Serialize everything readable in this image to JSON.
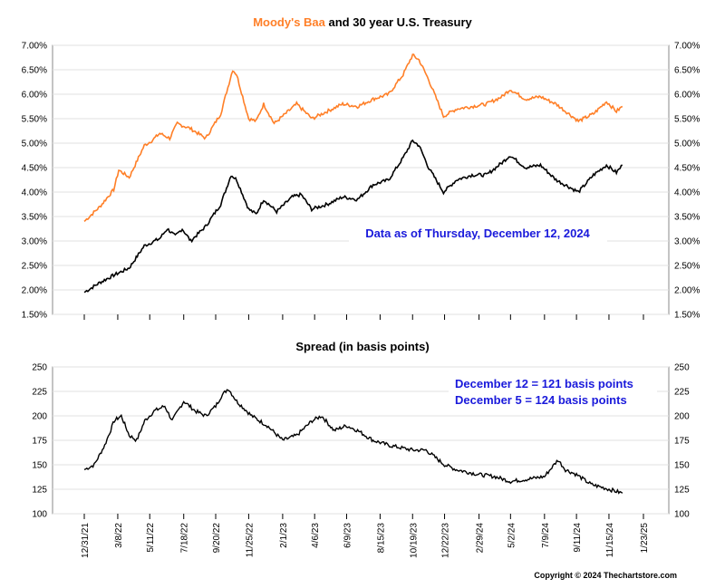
{
  "chart_data": [
    {
      "type": "line",
      "title_part1": "Moody's Baa",
      "title_part2": " and 30 year U.S. Treasury",
      "annotation": "Data as of Thursday, December 12, 2024",
      "ylim": [
        1.5,
        7.0
      ],
      "yticks": [
        "7.00%",
        "6.50%",
        "6.00%",
        "5.50%",
        "5.00%",
        "4.50%",
        "4.00%",
        "3.50%",
        "3.00%",
        "2.50%",
        "2.00%",
        "1.50%"
      ],
      "grid": true,
      "colors": {
        "baa": "#ff7f27",
        "treasury": "#000000"
      },
      "series": [
        {
          "key": "baa",
          "points": [
            [
              "2021-12-31",
              3.4
            ],
            [
              "2022-01-31",
              3.7
            ],
            [
              "2022-02-28",
              4.05
            ],
            [
              "2022-03-10",
              4.45
            ],
            [
              "2022-03-31",
              4.3
            ],
            [
              "2022-04-30",
              4.95
            ],
            [
              "2022-05-15",
              5.05
            ],
            [
              "2022-05-31",
              5.2
            ],
            [
              "2022-06-20",
              5.1
            ],
            [
              "2022-07-05",
              5.4
            ],
            [
              "2022-07-31",
              5.3
            ],
            [
              "2022-08-31",
              5.1
            ],
            [
              "2022-09-30",
              5.6
            ],
            [
              "2022-10-24",
              6.5
            ],
            [
              "2022-11-01",
              6.4
            ],
            [
              "2022-11-25",
              5.5
            ],
            [
              "2022-12-10",
              5.45
            ],
            [
              "2022-12-25",
              5.8
            ],
            [
              "2023-01-15",
              5.4
            ],
            [
              "2023-02-01",
              5.55
            ],
            [
              "2023-03-01",
              5.8
            ],
            [
              "2023-04-01",
              5.5
            ],
            [
              "2023-05-01",
              5.65
            ],
            [
              "2023-06-01",
              5.8
            ],
            [
              "2023-07-01",
              5.75
            ],
            [
              "2023-08-01",
              5.9
            ],
            [
              "2023-09-01",
              6.0
            ],
            [
              "2023-09-30",
              6.4
            ],
            [
              "2023-10-19",
              6.8
            ],
            [
              "2023-11-01",
              6.7
            ],
            [
              "2023-11-20",
              6.3
            ],
            [
              "2023-12-20",
              5.55
            ],
            [
              "2024-01-15",
              5.7
            ],
            [
              "2024-02-15",
              5.75
            ],
            [
              "2024-03-15",
              5.8
            ],
            [
              "2024-04-15",
              5.95
            ],
            [
              "2024-05-01",
              6.1
            ],
            [
              "2024-06-01",
              5.9
            ],
            [
              "2024-07-01",
              5.95
            ],
            [
              "2024-08-01",
              5.8
            ],
            [
              "2024-09-15",
              5.45
            ],
            [
              "2024-10-15",
              5.6
            ],
            [
              "2024-11-10",
              5.85
            ],
            [
              "2024-11-30",
              5.65
            ],
            [
              "2024-12-12",
              5.75
            ]
          ]
        },
        {
          "key": "treasury",
          "points": [
            [
              "2021-12-31",
              1.95
            ],
            [
              "2022-01-31",
              2.15
            ],
            [
              "2022-02-28",
              2.3
            ],
            [
              "2022-03-31",
              2.45
            ],
            [
              "2022-04-30",
              2.9
            ],
            [
              "2022-05-31",
              3.05
            ],
            [
              "2022-06-15",
              3.25
            ],
            [
              "2022-07-01",
              3.1
            ],
            [
              "2022-07-15",
              3.25
            ],
            [
              "2022-08-01",
              3.0
            ],
            [
              "2022-08-31",
              3.3
            ],
            [
              "2022-09-30",
              3.75
            ],
            [
              "2022-10-21",
              4.35
            ],
            [
              "2022-11-01",
              4.25
            ],
            [
              "2022-11-25",
              3.65
            ],
            [
              "2022-12-10",
              3.55
            ],
            [
              "2022-12-25",
              3.85
            ],
            [
              "2023-01-20",
              3.6
            ],
            [
              "2023-02-20",
              3.9
            ],
            [
              "2023-03-10",
              3.95
            ],
            [
              "2023-03-31",
              3.65
            ],
            [
              "2023-05-01",
              3.75
            ],
            [
              "2023-06-01",
              3.9
            ],
            [
              "2023-07-01",
              3.85
            ],
            [
              "2023-08-01",
              4.15
            ],
            [
              "2023-09-01",
              4.25
            ],
            [
              "2023-09-30",
              4.7
            ],
            [
              "2023-10-19",
              5.05
            ],
            [
              "2023-11-01",
              4.95
            ],
            [
              "2023-11-20",
              4.5
            ],
            [
              "2023-12-20",
              4.0
            ],
            [
              "2024-01-15",
              4.25
            ],
            [
              "2024-02-15",
              4.35
            ],
            [
              "2024-03-15",
              4.35
            ],
            [
              "2024-04-15",
              4.6
            ],
            [
              "2024-05-01",
              4.75
            ],
            [
              "2024-06-01",
              4.5
            ],
            [
              "2024-07-01",
              4.55
            ],
            [
              "2024-08-01",
              4.25
            ],
            [
              "2024-09-15",
              4.0
            ],
            [
              "2024-10-15",
              4.35
            ],
            [
              "2024-11-10",
              4.55
            ],
            [
              "2024-11-30",
              4.4
            ],
            [
              "2024-12-12",
              4.55
            ]
          ]
        }
      ]
    },
    {
      "type": "line",
      "title": "Spread (in basis points)",
      "annotations": [
        "December 12 = 121 basis points",
        "December 5 = 124 basis points"
      ],
      "ylim": [
        100,
        250
      ],
      "yticks": [
        "250",
        "225",
        "200",
        "175",
        "150",
        "125",
        "100"
      ],
      "grid": true,
      "color": "#000000",
      "categories": [
        "12/31/21",
        "3/8/22",
        "5/11/22",
        "7/18/22",
        "9/20/22",
        "11/25/22",
        "2/1/23",
        "4/6/23",
        "6/9/23",
        "8/15/23",
        "10/19/23",
        "12/22/23",
        "2/29/24",
        "5/2/24",
        "7/9/24",
        "9/11/24",
        "11/15/24",
        "1/23/25"
      ],
      "points": [
        [
          "2021-12-31",
          145
        ],
        [
          "2022-01-20",
          150
        ],
        [
          "2022-02-10",
          170
        ],
        [
          "2022-03-01",
          195
        ],
        [
          "2022-03-15",
          200
        ],
        [
          "2022-03-31",
          180
        ],
        [
          "2022-04-15",
          175
        ],
        [
          "2022-05-01",
          195
        ],
        [
          "2022-05-20",
          205
        ],
        [
          "2022-06-10",
          210
        ],
        [
          "2022-06-25",
          195
        ],
        [
          "2022-07-18",
          215
        ],
        [
          "2022-08-10",
          205
        ],
        [
          "2022-08-31",
          200
        ],
        [
          "2022-09-20",
          210
        ],
        [
          "2022-10-01",
          220
        ],
        [
          "2022-10-15",
          228
        ],
        [
          "2022-11-01",
          215
        ],
        [
          "2022-12-01",
          200
        ],
        [
          "2023-01-01",
          190
        ],
        [
          "2023-02-01",
          175
        ],
        [
          "2023-03-01",
          180
        ],
        [
          "2023-04-01",
          195
        ],
        [
          "2023-04-20",
          200
        ],
        [
          "2023-05-15",
          185
        ],
        [
          "2023-06-09",
          190
        ],
        [
          "2023-07-01",
          185
        ],
        [
          "2023-08-01",
          175
        ],
        [
          "2023-09-01",
          170
        ],
        [
          "2023-10-19",
          165
        ],
        [
          "2023-11-15",
          165
        ],
        [
          "2023-12-22",
          150
        ],
        [
          "2024-01-15",
          145
        ],
        [
          "2024-02-29",
          140
        ],
        [
          "2024-03-31",
          138
        ],
        [
          "2024-05-02",
          133
        ],
        [
          "2024-06-01",
          135
        ],
        [
          "2024-07-09",
          138
        ],
        [
          "2024-08-05",
          155
        ],
        [
          "2024-08-20",
          145
        ],
        [
          "2024-09-11",
          140
        ],
        [
          "2024-10-10",
          130
        ],
        [
          "2024-11-15",
          125
        ],
        [
          "2024-12-12",
          121
        ]
      ]
    }
  ],
  "footer": {
    "copyright": "Copyright © 2024 Thechartstore.com"
  }
}
